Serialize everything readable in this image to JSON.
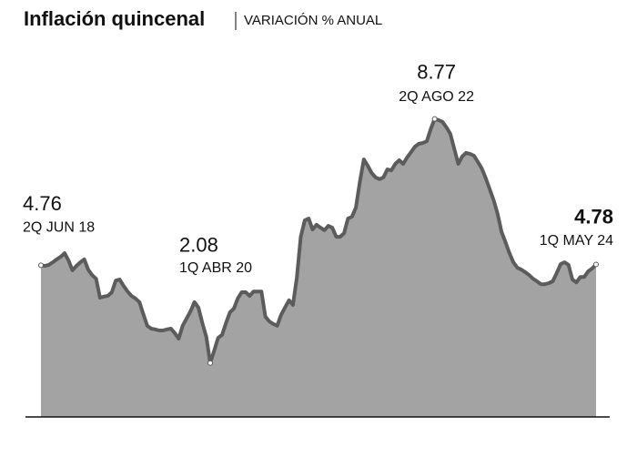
{
  "chart_data": {
    "type": "area",
    "title": "Inflación quincenal",
    "subtitle": "VARIACIÓN % ANUAL",
    "categories": [
      "2Q JUN 18",
      null,
      null,
      null,
      null,
      null,
      null,
      null,
      null,
      null,
      null,
      null,
      null,
      null,
      null,
      null,
      null,
      null,
      null,
      null,
      null,
      null,
      null,
      null,
      null,
      null,
      null,
      null,
      null,
      null,
      null,
      null,
      null,
      null,
      null,
      null,
      null,
      null,
      null,
      null,
      null,
      null,
      null,
      "1Q ABR 20",
      null,
      null,
      null,
      null,
      null,
      null,
      null,
      null,
      null,
      null,
      null,
      null,
      null,
      null,
      null,
      null,
      null,
      null,
      null,
      null,
      null,
      null,
      null,
      null,
      null,
      null,
      null,
      null,
      null,
      null,
      null,
      null,
      null,
      null,
      null,
      null,
      null,
      null,
      null,
      null,
      null,
      null,
      null,
      null,
      null,
      null,
      null,
      null,
      null,
      null,
      null,
      null,
      null,
      null,
      null,
      null,
      "2Q AGO 22",
      null,
      null,
      null,
      null,
      null,
      null,
      null,
      null,
      null,
      null,
      null,
      null,
      null,
      null,
      null,
      null,
      null,
      null,
      null,
      null,
      null,
      null,
      null,
      null,
      null,
      null,
      null,
      null,
      null,
      null,
      null,
      null,
      null,
      null,
      null,
      null,
      null,
      null,
      null,
      null,
      "1Q MAY 24"
    ],
    "values": [
      4.76,
      4.74,
      4.77,
      4.84,
      4.92,
      4.99,
      5.09,
      4.89,
      4.62,
      4.74,
      4.84,
      4.92,
      4.64,
      4.49,
      4.39,
      3.87,
      3.9,
      3.92,
      4.02,
      4.34,
      4.37,
      4.19,
      4.04,
      3.92,
      3.85,
      3.75,
      3.42,
      3.1,
      3.02,
      3.0,
      2.97,
      2.97,
      3.0,
      3.02,
      2.9,
      2.75,
      3.1,
      3.3,
      3.5,
      3.75,
      3.6,
      3.17,
      2.8,
      2.08,
      2.42,
      2.77,
      2.85,
      3.17,
      3.47,
      3.57,
      3.85,
      4.02,
      4.02,
      3.92,
      4.04,
      4.04,
      4.04,
      3.35,
      3.22,
      3.15,
      3.1,
      3.4,
      3.6,
      3.8,
      3.67,
      4.42,
      5.54,
      5.99,
      6.04,
      5.74,
      5.87,
      5.79,
      5.72,
      5.84,
      5.79,
      5.54,
      5.54,
      5.64,
      6.04,
      6.09,
      6.34,
      7.04,
      7.66,
      7.49,
      7.29,
      7.17,
      7.12,
      7.17,
      7.39,
      7.36,
      7.54,
      7.64,
      7.54,
      7.71,
      7.86,
      8.01,
      8.09,
      8.11,
      8.16,
      8.49,
      8.77,
      8.74,
      8.69,
      8.54,
      8.36,
      7.94,
      7.54,
      7.74,
      7.84,
      7.81,
      7.76,
      7.59,
      7.41,
      7.14,
      6.84,
      6.54,
      6.17,
      5.67,
      5.39,
      5.09,
      4.84,
      4.69,
      4.64,
      4.57,
      4.49,
      4.39,
      4.32,
      4.24,
      4.24,
      4.27,
      4.32,
      4.54,
      4.79,
      4.84,
      4.77,
      4.37,
      4.29,
      4.44,
      4.44,
      4.59,
      4.67,
      4.78
    ],
    "ylim": [
      0.6,
      10
    ],
    "color": "#a3a3a3",
    "line_color": "#5c5c5c"
  }
}
